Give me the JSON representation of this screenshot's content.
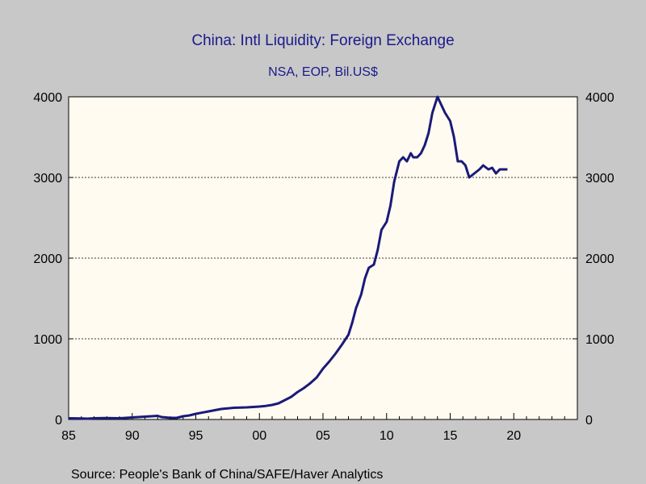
{
  "chart_data": {
    "type": "line",
    "title": "China: Intl Liquidity: Foreign Exchange",
    "subtitle": "NSA, EOP, Bil.US$",
    "source": "Source:  People's Bank of China/SAFE/Haver Analytics",
    "xlim": [
      1985,
      2025
    ],
    "ylim": [
      0,
      4000
    ],
    "x_ticks": [
      1985,
      1990,
      1995,
      2000,
      2005,
      2010,
      2015,
      2020
    ],
    "x_tick_labels": [
      "85",
      "90",
      "95",
      "00",
      "05",
      "10",
      "15",
      "20"
    ],
    "y_ticks": [
      0,
      1000,
      2000,
      3000,
      4000
    ],
    "y_tick_labels": [
      "0",
      "1000",
      "2000",
      "3000",
      "4000"
    ],
    "grid": "horizontal dotted",
    "colors": {
      "background": "#c8c8c8",
      "plot_background": "#fffbf0",
      "line": "#1a1a7a",
      "title": "#1a1a8c"
    },
    "series": [
      {
        "x": [
          1985.0,
          1986.0,
          1986.5,
          1987.0,
          1988.0,
          1989.0,
          1990.0,
          1991.0,
          1991.5,
          1992.0,
          1992.3,
          1993.0,
          1993.5,
          1994.0,
          1994.5,
          1995.0,
          1996.0,
          1997.0,
          1998.0,
          1999.0,
          2000.0,
          2000.5,
          2001.0,
          2001.5,
          2002.0,
          2002.5,
          2003.0,
          2003.5,
          2004.0,
          2004.5,
          2005.0,
          2005.5,
          2006.0,
          2006.5,
          2007.0,
          2007.3,
          2007.6,
          2008.0,
          2008.3,
          2008.6,
          2009.0,
          2009.3,
          2009.6,
          2010.0,
          2010.3,
          2010.6,
          2011.0,
          2011.3,
          2011.6,
          2011.9,
          2012.1,
          2012.4,
          2012.7,
          2013.0,
          2013.3,
          2013.6,
          2014.0,
          2014.3,
          2014.6,
          2015.0,
          2015.3,
          2015.6,
          2015.9,
          2016.2,
          2016.5,
          2016.9,
          2017.3,
          2017.6,
          2018.0,
          2018.3,
          2018.6,
          2018.9,
          2019.2,
          2019.5
        ],
        "y": [
          15,
          12,
          10,
          15,
          18,
          15,
          25,
          35,
          40,
          45,
          30,
          20,
          20,
          40,
          50,
          70,
          100,
          130,
          145,
          150,
          160,
          168,
          180,
          200,
          240,
          280,
          340,
          390,
          450,
          520,
          630,
          720,
          820,
          930,
          1050,
          1200,
          1380,
          1550,
          1750,
          1880,
          1920,
          2100,
          2350,
          2450,
          2650,
          2950,
          3200,
          3250,
          3200,
          3300,
          3250,
          3250,
          3300,
          3400,
          3550,
          3800,
          4000,
          3900,
          3800,
          3700,
          3500,
          3200,
          3200,
          3150,
          3000,
          3050,
          3100,
          3150,
          3100,
          3120,
          3050,
          3100,
          3100,
          3100
        ]
      }
    ]
  }
}
